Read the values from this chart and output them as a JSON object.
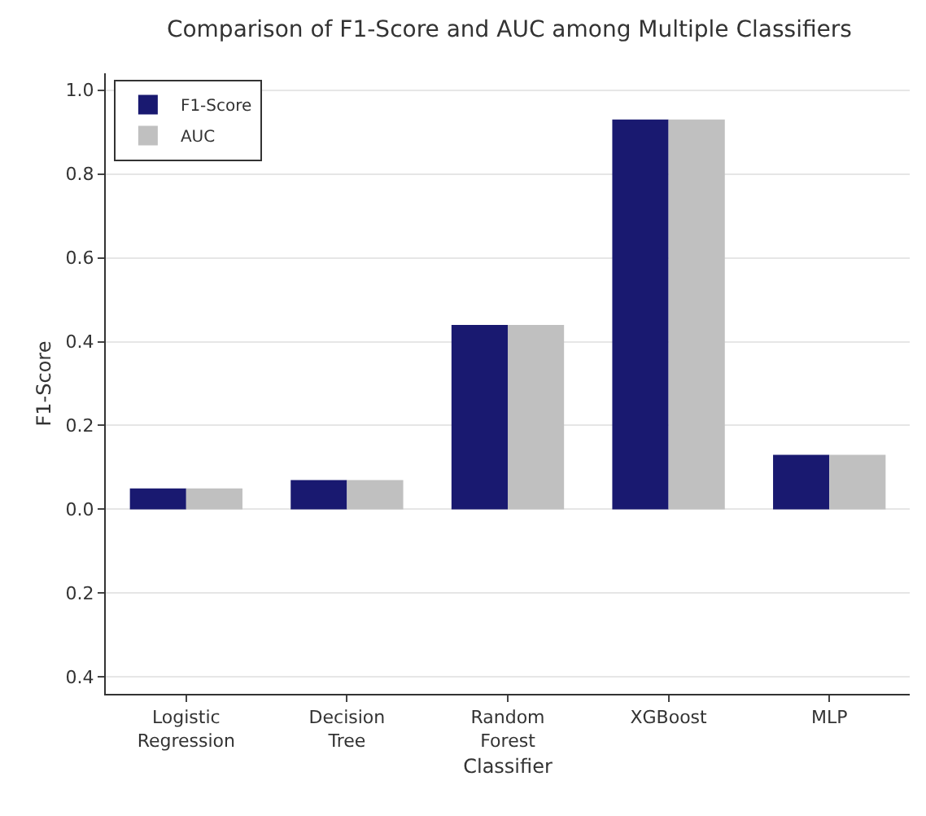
{
  "chart_data": {
    "type": "bar",
    "title": "Comparison of F1-Score and AUC among Multiple Classifiers",
    "xlabel": "Classifier",
    "ylabel": "F1-Score",
    "categories": [
      "Logistic Regression",
      "Decision Tree",
      "Random Forest",
      "XGBoost",
      "MLP"
    ],
    "series": [
      {
        "name": "F1-Score",
        "color": "#191970",
        "values": [
          0.05,
          0.07,
          0.44,
          0.93,
          0.13
        ]
      },
      {
        "name": "AUC",
        "color": "#c0c0c0",
        "values": [
          0.05,
          0.07,
          0.44,
          0.93,
          0.13
        ]
      }
    ],
    "ylim": [
      -0.44,
      1.04
    ],
    "yticks": [
      {
        "value": -0.4,
        "label": "0.4"
      },
      {
        "value": -0.2,
        "label": "0.2"
      },
      {
        "value": 0,
        "label": "0.0"
      },
      {
        "value": 0.2,
        "label": "0.2"
      },
      {
        "value": 0.4,
        "label": "0.4"
      },
      {
        "value": 0.6,
        "label": "0.6"
      },
      {
        "value": 0.8,
        "label": "0.8"
      },
      {
        "value": 1,
        "label": "1.0"
      }
    ],
    "grid": "y",
    "legend": "top left"
  }
}
